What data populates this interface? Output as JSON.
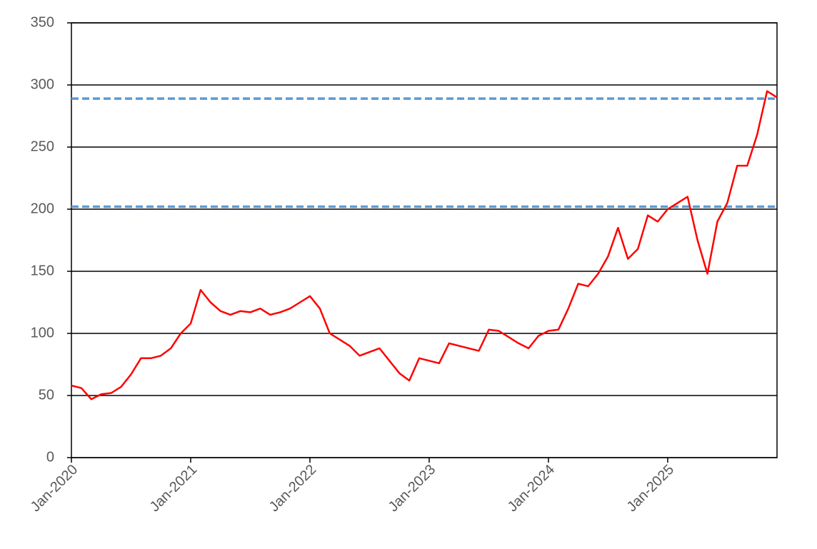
{
  "chart_data": {
    "type": "line",
    "x": [
      "Jan-2020",
      "Feb-2020",
      "Mar-2020",
      "Apr-2020",
      "May-2020",
      "Jun-2020",
      "Jul-2020",
      "Aug-2020",
      "Sep-2020",
      "Oct-2020",
      "Nov-2020",
      "Dec-2020",
      "Jan-2021",
      "Feb-2021",
      "Mar-2021",
      "Apr-2021",
      "May-2021",
      "Jun-2021",
      "Jul-2021",
      "Aug-2021",
      "Sep-2021",
      "Oct-2021",
      "Nov-2021",
      "Dec-2021",
      "Jan-2022",
      "Feb-2022",
      "Mar-2022",
      "Apr-2022",
      "May-2022",
      "Jun-2022",
      "Jul-2022",
      "Aug-2022",
      "Sep-2022",
      "Oct-2022",
      "Nov-2022",
      "Dec-2022",
      "Jan-2023",
      "Feb-2023",
      "Mar-2023",
      "Apr-2023",
      "May-2023",
      "Jun-2023",
      "Jul-2023",
      "Aug-2023",
      "Sep-2023",
      "Oct-2023",
      "Nov-2023",
      "Dec-2023",
      "Jan-2024",
      "Feb-2024",
      "Mar-2024",
      "Apr-2024",
      "May-2024",
      "Jun-2024",
      "Jul-2024",
      "Aug-2024",
      "Sep-2024",
      "Oct-2024",
      "Nov-2024",
      "Dec-2024",
      "Jan-2025",
      "Feb-2025",
      "Mar-2025",
      "Apr-2025",
      "May-2025",
      "Jun-2025",
      "Jul-2025",
      "Aug-2025",
      "Sep-2025",
      "Oct-2025",
      "Nov-2025",
      "Dec-2025"
    ],
    "series": [
      {
        "color": "#ff0000",
        "values": [
          58,
          56,
          47,
          51,
          52,
          57,
          67,
          80,
          80,
          82,
          88,
          100,
          108,
          135,
          125,
          118,
          115,
          118,
          117,
          120,
          115,
          117,
          120,
          125,
          130,
          120,
          100,
          95,
          90,
          82,
          85,
          88,
          78,
          68,
          62,
          80,
          78,
          76,
          92,
          90,
          88,
          86,
          103,
          102,
          97,
          92,
          88,
          98,
          102,
          103,
          120,
          140,
          138,
          148,
          162,
          185,
          160,
          168,
          195,
          190,
          200,
          205,
          210,
          175,
          148,
          190,
          205,
          235,
          235,
          260,
          295,
          290
        ]
      }
    ],
    "xlim": [
      "Jan-2020",
      "Dec-2025"
    ],
    "xticks": [
      "Jan-2020",
      "Jan-2021",
      "Jan-2022",
      "Jan-2023",
      "Jan-2024",
      "Jan-2025"
    ],
    "ylim": [
      0,
      350
    ],
    "yticks": [
      0,
      50,
      100,
      150,
      200,
      250,
      300,
      350
    ],
    "grid": true,
    "reference_lines": [
      {
        "value": 289,
        "color": "#5b9bd5"
      },
      {
        "value": 202,
        "color": "#5b9bd5"
      }
    ]
  }
}
